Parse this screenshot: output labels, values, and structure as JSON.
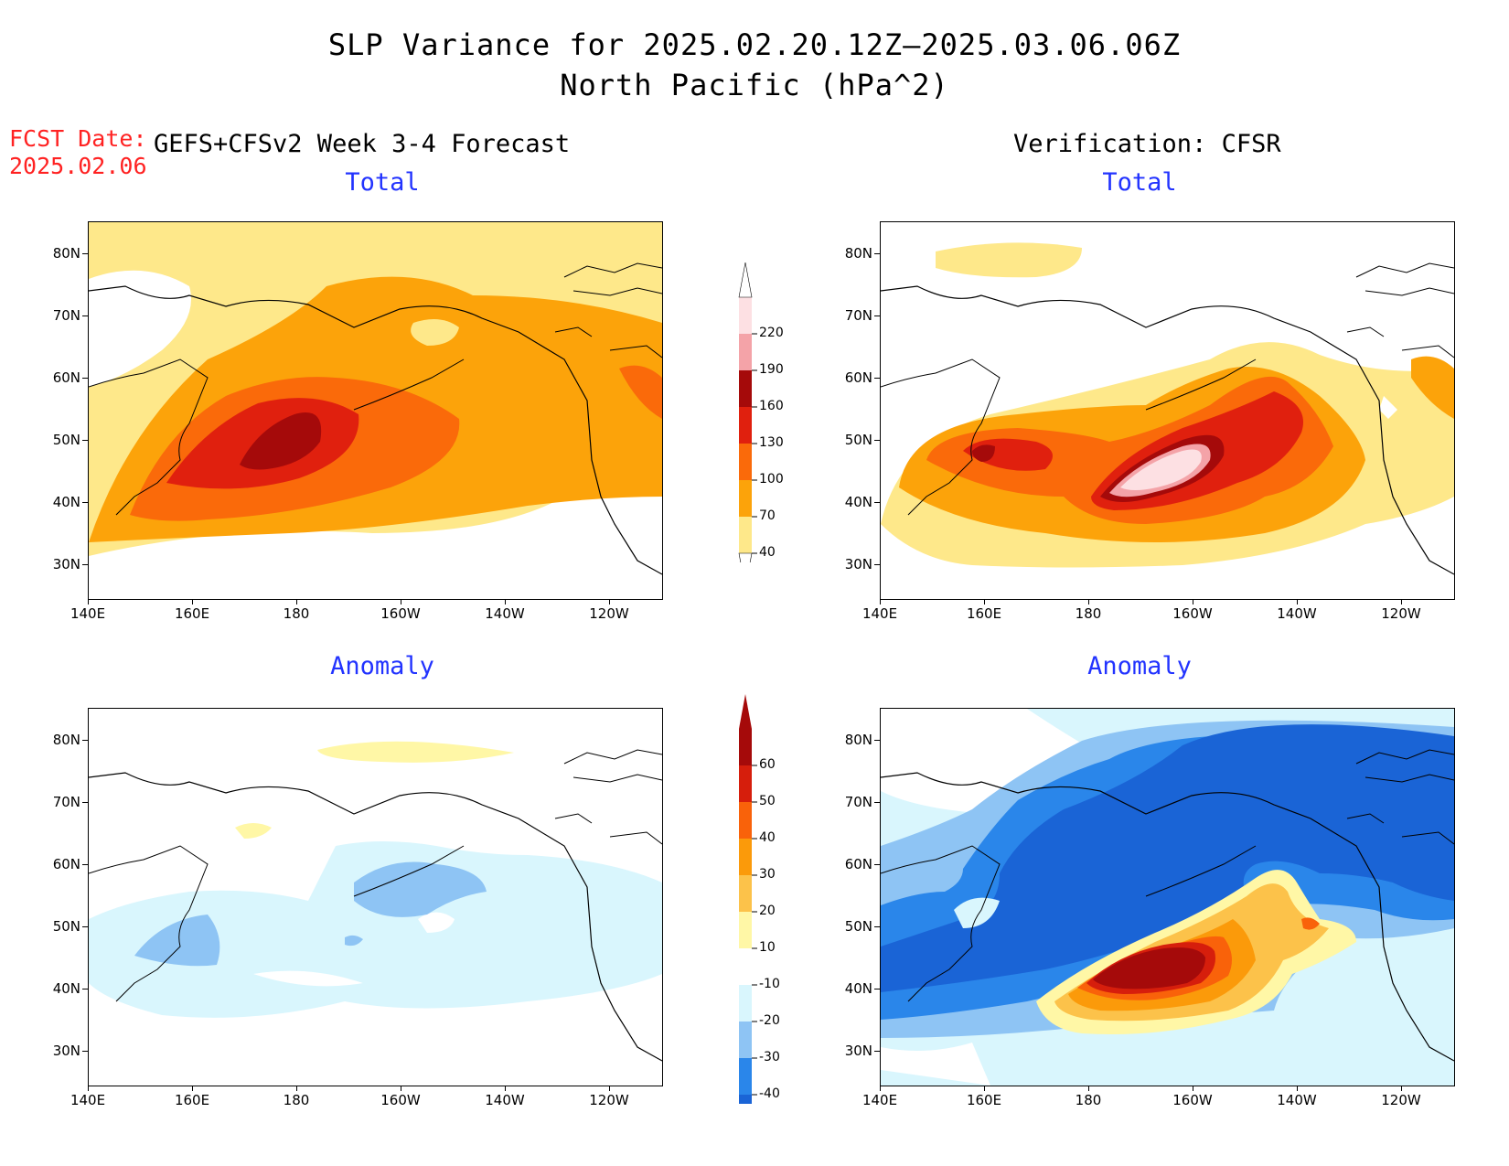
{
  "header": {
    "title_line1": "SLP Variance for 2025.02.20.12Z–2025.03.06.06Z",
    "title_line2": "North Pacific (hPa^2)",
    "fcst_label": "FCST Date:",
    "fcst_date": "2025.02.06",
    "left_column": "GEFS+CFSv2 Week 3-4 Forecast",
    "right_column": "Verification: CFSR"
  },
  "panels": {
    "total_title": "Total",
    "anomaly_title": "Anomaly"
  },
  "axes": {
    "lat_labels": [
      "80N",
      "70N",
      "60N",
      "50N",
      "40N",
      "30N"
    ],
    "lon_labels": [
      "140E",
      "160E",
      "180",
      "160W",
      "140W",
      "120W"
    ]
  },
  "colorbars": {
    "total": {
      "levels": [
        "40",
        "70",
        "100",
        "130",
        "160",
        "190",
        "220"
      ],
      "colors": [
        "#fee88a",
        "#fca30a",
        "#fa6a0a",
        "#e0200e",
        "#a50a0a",
        "#f4a3a8",
        "#fde0e3"
      ]
    },
    "anomaly": {
      "levels": [
        "-40",
        "-30",
        "-20",
        "-10",
        "10",
        "20",
        "30",
        "40",
        "50",
        "60"
      ],
      "colors": [
        "#1a64d6",
        "#2a86ea",
        "#8ec4f4",
        "#d9f6fd",
        "#ffffff",
        "#fff7a6",
        "#fcc24a",
        "#fb9a0a",
        "#f9620a",
        "#d61e0c",
        "#a50a0a"
      ]
    }
  }
}
